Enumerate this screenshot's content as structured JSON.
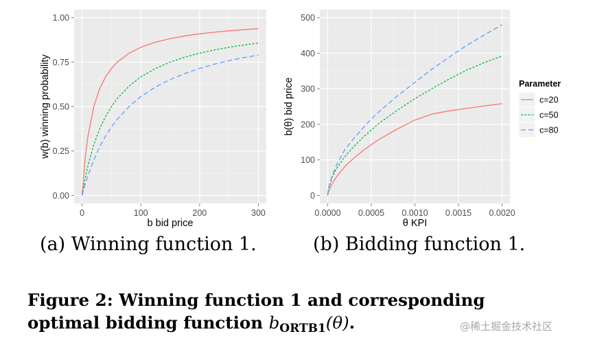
{
  "chart_data": [
    {
      "type": "line",
      "title": "",
      "xlabel": "b bid price",
      "ylabel": "w(b) winning probability",
      "xlim": [
        0,
        300
      ],
      "ylim": [
        0,
        1.0
      ],
      "x_ticks": [
        "0",
        "100",
        "200",
        "300"
      ],
      "y_ticks": [
        "0.00",
        "0.25",
        "0.50",
        "0.75",
        "1.00"
      ],
      "grid": true,
      "legend": "none",
      "x": [
        0,
        5,
        10,
        20,
        30,
        40,
        50,
        60,
        80,
        100,
        125,
        150,
        175,
        200,
        225,
        250,
        275,
        300
      ],
      "series": [
        {
          "name": "c=20",
          "color": "#f8766d",
          "dash": "solid",
          "values": [
            0,
            0.2,
            0.333,
            0.5,
            0.6,
            0.667,
            0.714,
            0.75,
            0.8,
            0.833,
            0.862,
            0.882,
            0.897,
            0.909,
            0.918,
            0.926,
            0.932,
            0.938
          ]
        },
        {
          "name": "c=50",
          "color": "#00ba38",
          "dash": "dotted",
          "values": [
            0,
            0.091,
            0.167,
            0.286,
            0.375,
            0.444,
            0.5,
            0.545,
            0.615,
            0.667,
            0.714,
            0.75,
            0.778,
            0.8,
            0.818,
            0.833,
            0.846,
            0.857
          ]
        },
        {
          "name": "c=80",
          "color": "#619cff",
          "dash": "dashed",
          "values": [
            0,
            0.059,
            0.111,
            0.2,
            0.273,
            0.333,
            0.385,
            0.429,
            0.5,
            0.556,
            0.61,
            0.652,
            0.686,
            0.714,
            0.738,
            0.758,
            0.775,
            0.789
          ]
        }
      ]
    },
    {
      "type": "line",
      "title": "",
      "xlabel": "θ KPI",
      "ylabel": "b(θ) bid price",
      "xlim": [
        0,
        0.002
      ],
      "ylim": [
        0,
        500
      ],
      "x_ticks": [
        "0.0000",
        "0.0005",
        "0.0010",
        "0.0015",
        "0.0020"
      ],
      "y_ticks": [
        "0",
        "100",
        "200",
        "300",
        "400",
        "500"
      ],
      "grid": true,
      "legend": "right",
      "legend_title": "Parameter",
      "x": [
        0,
        1e-05,
        5e-05,
        0.0001,
        0.0002,
        0.0003,
        0.0004,
        0.0005,
        0.0006,
        0.0008,
        0.001,
        0.0012,
        0.0014,
        0.0016,
        0.0018,
        0.002
      ],
      "series": [
        {
          "name": "c=20",
          "color": "#f8766d",
          "dash": "solid",
          "values": [
            0,
            11,
            33,
            52,
            82,
            105,
            125,
            143,
            159,
            187,
            212,
            229,
            238,
            245,
            252,
            258
          ]
        },
        {
          "name": "c=50",
          "color": "#00ba38",
          "dash": "dotted",
          "values": [
            0,
            18,
            51,
            75,
            110,
            138,
            162,
            184,
            205,
            240,
            272,
            301,
            328,
            353,
            374,
            392
          ]
        },
        {
          "name": "c=80",
          "color": "#619cff",
          "dash": "dashed",
          "values": [
            0,
            22,
            55,
            85,
            130,
            160,
            188,
            215,
            238,
            280,
            318,
            356,
            390,
            423,
            452,
            480
          ]
        }
      ]
    }
  ],
  "subcaptions": {
    "a": "(a) Winning function 1.",
    "b": "(b) Bidding function 1."
  },
  "figure_caption": {
    "line1": "Figure 2:  Winning function 1 and corresponding",
    "line2_prefix": "optimal bidding function ",
    "math_b": "b",
    "math_sub": "ORTB1",
    "math_arg": "(θ)",
    "line2_suffix": "."
  },
  "watermark": "@稀土掘金技术社区"
}
